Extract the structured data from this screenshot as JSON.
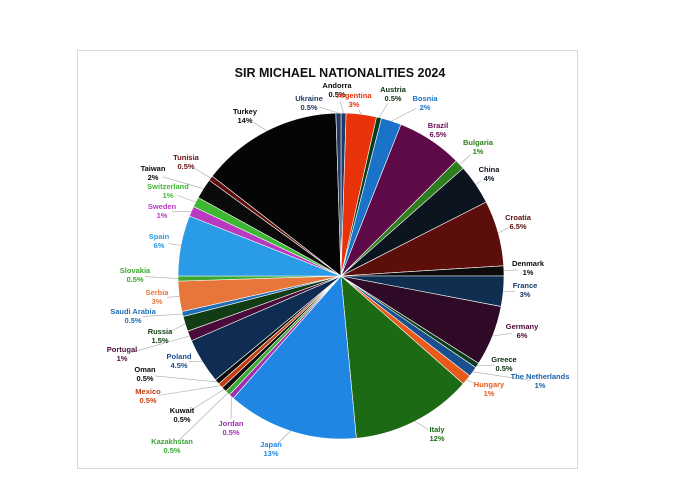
{
  "chart_data": {
    "type": "pie",
    "title": "SIR MICHAEL NATIONALITIES 2024",
    "slices": [
      {
        "label": "Andorra",
        "percent_label": "0.5%",
        "value": 0.5,
        "color": "#1F3864",
        "text_color": "#0b0b0b"
      },
      {
        "label": "Argentina",
        "percent_label": "3%",
        "value": 3,
        "color": "#E8330A",
        "text_color": "#E8330A"
      },
      {
        "label": "Austria",
        "percent_label": "0.5%",
        "value": 0.5,
        "color": "#0a3d1a",
        "text_color": "#0b2f12"
      },
      {
        "label": "Bosnia",
        "percent_label": "2%",
        "value": 2,
        "color": "#1a73c9",
        "text_color": "#1a73c9"
      },
      {
        "label": "Brazil",
        "percent_label": "6.5%",
        "value": 6.5,
        "color": "#5e0a48",
        "text_color": "#6a0c52"
      },
      {
        "label": "Bulgaria",
        "percent_label": "1%",
        "value": 1,
        "color": "#2e7d1f",
        "text_color": "#2e7d1f"
      },
      {
        "label": "China",
        "percent_label": "4%",
        "value": 4,
        "color": "#0c1420",
        "text_color": "#0c1420"
      },
      {
        "label": "Croatia",
        "percent_label": "6.5%",
        "value": 6.5,
        "color": "#5c0f0a",
        "text_color": "#5c0f0a"
      },
      {
        "label": "Denmark",
        "percent_label": "1%",
        "value": 1,
        "color": "#0b0b0b",
        "text_color": "#0b0b0b"
      },
      {
        "label": "France",
        "percent_label": "3%",
        "value": 3,
        "color": "#0f2e50",
        "text_color": "#123a66"
      },
      {
        "label": "Germany",
        "percent_label": "6%",
        "value": 6,
        "color": "#2e0a26",
        "text_color": "#4a0a3a"
      },
      {
        "label": "Greece",
        "percent_label": "0.5%",
        "value": 0.5,
        "color": "#0a3d1a",
        "text_color": "#0b2f12"
      },
      {
        "label": "The Netherlands",
        "percent_label": "1%",
        "value": 1,
        "color": "#1a4f8f",
        "text_color": "#1a5fa8"
      },
      {
        "label": "Hungary",
        "percent_label": "1%",
        "value": 1,
        "color": "#E85A1A",
        "text_color": "#E85A1A"
      },
      {
        "label": "Italy",
        "percent_label": "12%",
        "value": 12,
        "color": "#1c6b14",
        "text_color": "#1c6b14"
      },
      {
        "label": "Japan",
        "percent_label": "13%",
        "value": 13,
        "color": "#1f86e3",
        "text_color": "#1f86e3"
      },
      {
        "label": "Jordan",
        "percent_label": "0.5%",
        "value": 0.5,
        "color": "#a030b0",
        "text_color": "#a030b0"
      },
      {
        "label": "Kazakhstan",
        "percent_label": "0.5%",
        "value": 0.5,
        "color": "#3aa832",
        "text_color": "#3aa832"
      },
      {
        "label": "Kuwait",
        "percent_label": "0.5%",
        "value": 0.5,
        "color": "#0b0b0b",
        "text_color": "#0b0b0b"
      },
      {
        "label": "Mexico",
        "percent_label": "0.5%",
        "value": 0.5,
        "color": "#c23d10",
        "text_color": "#c23d10"
      },
      {
        "label": "Oman",
        "percent_label": "0.5%",
        "value": 0.5,
        "color": "#0b0b0b",
        "text_color": "#0b0b0b"
      },
      {
        "label": "Poland",
        "percent_label": "4.5%",
        "value": 4.5,
        "color": "#0f2d52",
        "text_color": "#1a4f8f"
      },
      {
        "label": "Portugal",
        "percent_label": "1%",
        "value": 1,
        "color": "#4a0a3a",
        "text_color": "#4a0a3a"
      },
      {
        "label": "Russia",
        "percent_label": "1.5%",
        "value": 1.5,
        "color": "#123d14",
        "text_color": "#123d14"
      },
      {
        "label": "Saudi Arabia",
        "percent_label": "0.5%",
        "value": 0.5,
        "color": "#1f6fb8",
        "text_color": "#1f6fb8"
      },
      {
        "label": "Serbia",
        "percent_label": "3%",
        "value": 3,
        "color": "#E8763A",
        "text_color": "#E8763A"
      },
      {
        "label": "Slovakia",
        "percent_label": "0.5%",
        "value": 0.5,
        "color": "#3aa832",
        "text_color": "#3aa832"
      },
      {
        "label": "Spain",
        "percent_label": "6%",
        "value": 6,
        "color": "#2a9be6",
        "text_color": "#2a9be6"
      },
      {
        "label": "Sweden",
        "percent_label": "1%",
        "value": 1,
        "color": "#b83ac0",
        "text_color": "#b83ac0"
      },
      {
        "label": "Switzerland",
        "percent_label": "1%",
        "value": 1,
        "color": "#3cb832",
        "text_color": "#3cb832"
      },
      {
        "label": "Taiwan",
        "percent_label": "2%",
        "value": 2,
        "color": "#0b0b0b",
        "text_color": "#0b0b0b"
      },
      {
        "label": "Tunisia",
        "percent_label": "0.5%",
        "value": 0.5,
        "color": "#5c0f0a",
        "text_color": "#6a1010"
      },
      {
        "label": "Turkey",
        "percent_label": "14%",
        "value": 14,
        "color": "#050505",
        "text_color": "#0b0b0b"
      },
      {
        "label": "Ukraine",
        "percent_label": "0.5%",
        "value": 0.5,
        "color": "#1f3864",
        "text_color": "#1f3864"
      }
    ],
    "legend": "none",
    "label_style": "outside with leader lines"
  }
}
